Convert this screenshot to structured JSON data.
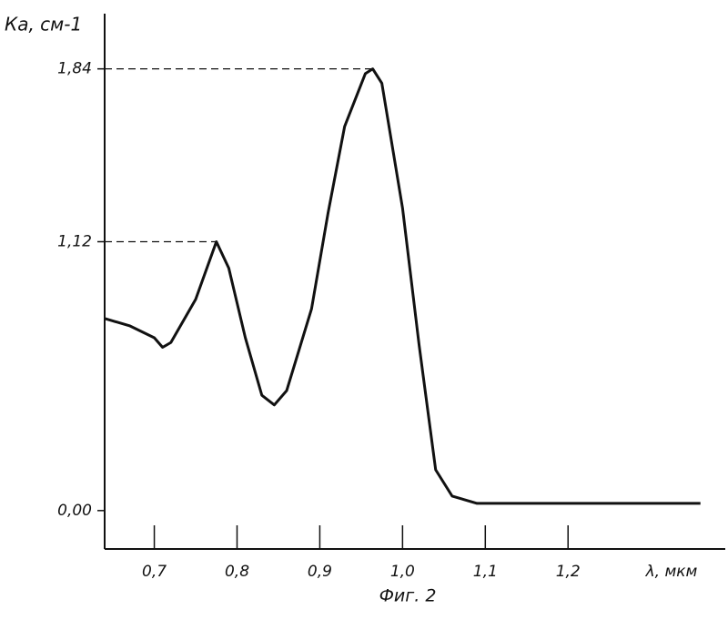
{
  "chart_data": {
    "type": "line",
    "title": "Фиг. 2",
    "y_label": "Ка, см-1",
    "x_label": "λ, мкм",
    "x": [
      0.64,
      0.67,
      0.7,
      0.71,
      0.72,
      0.75,
      0.775,
      0.79,
      0.81,
      0.83,
      0.845,
      0.86,
      0.89,
      0.91,
      0.93,
      0.955,
      0.964,
      0.975,
      1.0,
      1.02,
      1.04,
      1.06,
      1.09,
      1.2,
      1.36
    ],
    "series": [
      {
        "color": "#111111",
        "values": [
          0.8,
          0.77,
          0.72,
          0.68,
          0.7,
          0.88,
          1.12,
          1.01,
          0.72,
          0.48,
          0.44,
          0.5,
          0.84,
          1.24,
          1.6,
          1.82,
          1.84,
          1.78,
          1.26,
          0.69,
          0.17,
          0.06,
          0.03,
          0.03,
          0.03
        ]
      }
    ],
    "xlim": [
      0.64,
      1.39
    ],
    "ylim": [
      -0.16,
      2.07
    ],
    "xticks": [
      {
        "value": 0.7,
        "label": "0,7"
      },
      {
        "value": 0.8,
        "label": "0,8"
      },
      {
        "value": 0.9,
        "label": "0,9"
      },
      {
        "value": 1.0,
        "label": "1,0"
      },
      {
        "value": 1.1,
        "label": "1,1"
      },
      {
        "value": 1.2,
        "label": "1,2"
      }
    ],
    "yticks": [
      {
        "value": 0,
        "label": "0,00"
      },
      {
        "value": 1.12,
        "label": "1,12"
      },
      {
        "value": 1.84,
        "label": "1,84"
      }
    ],
    "grid": false
  }
}
